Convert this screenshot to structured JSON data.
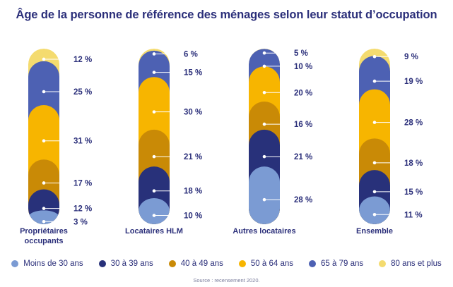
{
  "title": "Âge de la personne de référence des ménages selon leur statut d’occupation",
  "source": "Source : recensement 2020.",
  "colors": {
    "text": "#2b2f7a",
    "Moins de 30 ans": "#7b9bd3",
    "30 à 39 ans": "#28317a",
    "40 à 49 ans": "#c98a06",
    "50 à 64 ans": "#f7b500",
    "65 à 79 ans": "#4d61b3",
    "80 ans et plus": "#f4db6f"
  },
  "chart_data": {
    "type": "bar",
    "stacked": true,
    "unit": "%",
    "categories": [
      "Propriétaires occupants",
      "Locataires HLM",
      "Autres locataires",
      "Ensemble"
    ],
    "series": [
      {
        "name": "Moins de 30 ans",
        "values": [
          3,
          10,
          28,
          11
        ]
      },
      {
        "name": "30 à 39 ans",
        "values": [
          12,
          18,
          21,
          15
        ]
      },
      {
        "name": "40 à 49 ans",
        "values": [
          17,
          21,
          16,
          18
        ]
      },
      {
        "name": "50 à 64 ans",
        "values": [
          31,
          30,
          20,
          28
        ]
      },
      {
        "name": "65 à 79 ans",
        "values": [
          25,
          15,
          10,
          19
        ]
      },
      {
        "name": "80 ans et plus",
        "values": [
          12,
          6,
          5,
          9
        ]
      }
    ],
    "category_labels": [
      [
        "Propriétaires",
        "occupants"
      ],
      [
        "Locataires HLM"
      ],
      [
        "Autres locataires"
      ],
      [
        "Ensemble"
      ]
    ],
    "legend_position": "bottom"
  }
}
